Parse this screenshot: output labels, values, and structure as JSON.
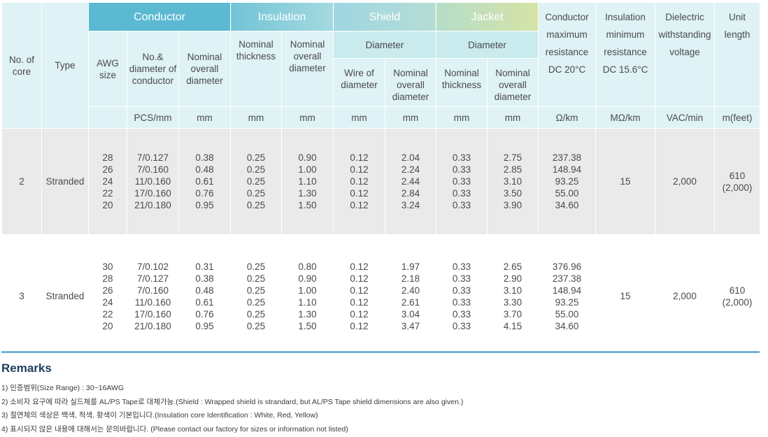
{
  "groups": {
    "conductor": "Conductor",
    "insulation": "Insulation",
    "shield": "Shield",
    "jacket": "Jacket",
    "shield_sub": "Diameter",
    "jacket_sub": "Diameter"
  },
  "headers": {
    "no_of_core": "No. of core",
    "type": "Type",
    "awg": "AWG size",
    "no_diameter": "No.& diameter of conductor",
    "cond_nominal": "Nominal overall diameter",
    "ins_thickness": "Nominal thickness",
    "ins_overall": "Nominal overall diameter",
    "shield_wire": "Wire of diameter",
    "shield_overall": "Nominal overall diameter",
    "jacket_thickness": "Nominal thickness",
    "jacket_overall": "Nominal overall diameter",
    "resistance": "Conductor maximum resistance DC 20°C",
    "insulation_res": "Insulation minimum resistance DC 15.6°C",
    "dielectric": "Dielectric withstanding voltage",
    "unit_length": "Unit length"
  },
  "units": {
    "no_diameter": "PCS/mm",
    "cond_nominal": "mm",
    "ins_thickness": "mm",
    "ins_overall": "mm",
    "shield_wire": "mm",
    "shield_overall": "mm",
    "jacket_thickness": "mm",
    "jacket_overall": "mm",
    "resistance": "Ω/km",
    "insulation_res": "MΩ/km",
    "dielectric": "VAC/min",
    "unit_length": "m(feet)"
  },
  "rows": [
    {
      "core": "2",
      "type": "Stranded",
      "awg": "28\n26\n24\n22\n20",
      "no_diameter": "7/0.127\n7/0.160\n11/0.160\n17/0.160\n21/0.180",
      "cond_nominal": "0.38\n0.48\n0.61\n0.76\n0.95",
      "ins_thickness": "0.25\n0.25\n0.25\n0.25\n0.25",
      "ins_overall": "0.90\n1.00\n1.10\n1.30\n1.50",
      "shield_wire": "0.12\n0.12\n0.12\n0.12\n0.12",
      "shield_overall": "2.04\n2.24\n2.44\n2.84\n3.24",
      "jacket_thickness": "0.33\n0.33\n0.33\n0.33\n0.33",
      "jacket_overall": "2.75\n2.85\n3.10\n3.50\n3.90",
      "resistance": "237.38\n148.94\n93.25\n55.00\n34.60",
      "insulation_res": "15",
      "dielectric": "2,000",
      "unit_length": "610\n(2,000)"
    },
    {
      "core": "3",
      "type": "Stranded",
      "awg": "30\n28\n26\n24\n22\n20",
      "no_diameter": "7/0.102\n7/0.127\n7/0.160\n11/0.160\n17/0.160\n21/0.180",
      "cond_nominal": "0.31\n0.38\n0.48\n0.61\n0.76\n0.95",
      "ins_thickness": "0.25\n0.25\n0.25\n0.25\n0.25\n0.25",
      "ins_overall": "0.80\n0.90\n1.00\n1.10\n1.30\n1.50",
      "shield_wire": "0.12\n0.12\n0.12\n0.12\n0.12\n0.12",
      "shield_overall": "1.97\n2.18\n2.40\n2.61\n3.04\n3.47",
      "jacket_thickness": "0.33\n0.33\n0.33\n0.33\n0.33\n0.33",
      "jacket_overall": "2.65\n2.90\n3.10\n3.30\n3.70\n4.15",
      "resistance": "376.96\n237.38\n148.94\n93.25\n55.00\n34.60",
      "insulation_res": "15",
      "dielectric": "2,000",
      "unit_length": "610\n(2,000)"
    }
  ],
  "remarks": {
    "title": "Remarks",
    "items": [
      "1) 인증범위(Size Range) : 30~16AWG",
      "2) 소비자 요구에 따라 실드체를 AL/PS Tape로 대체가능.(Shield : Wrapped shield is strandard, but AL/PS Tape shield dimensions are also given.)",
      "3) 절연체의 색상은 백색, 적색, 황색이 기본입니다.(Insulation core Identification : White, Red, Yellow)",
      "4) 표시되지 않은 내용에 대해서는 문의바랍니다. (Please contact our factory for sizes or information not listed)"
    ]
  },
  "colors": {
    "conductor_header": "#5bb9d2",
    "header_light": "#dff2f5",
    "subheader": "#c9ebee",
    "row_gray": "#eaeaea",
    "rule": "#6fb6d4",
    "remarks_title": "#1f3b5c"
  }
}
